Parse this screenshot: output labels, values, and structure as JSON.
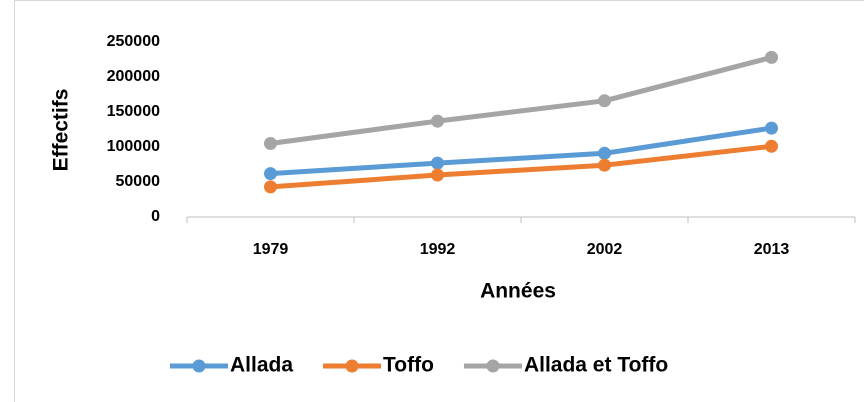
{
  "chart_data": {
    "type": "line",
    "x_label": "Années",
    "y_label": "Effectifs",
    "categories": [
      "1979",
      "1992",
      "2002",
      "2013"
    ],
    "series": [
      {
        "name": "Allada",
        "color": "#5b9bd5",
        "values": [
          62000,
          77000,
          91000,
          127000
        ]
      },
      {
        "name": "Toffo",
        "color": "#ed7d31",
        "values": [
          43000,
          60000,
          74000,
          101000
        ]
      },
      {
        "name": "Allada et Toffo",
        "color": "#a5a5a5",
        "values": [
          105000,
          137000,
          166000,
          228000
        ]
      }
    ],
    "ylim": [
      0,
      250000
    ],
    "yticks": [
      0,
      50000,
      100000,
      150000,
      200000,
      250000
    ],
    "grid": false,
    "legend": "bottom"
  }
}
